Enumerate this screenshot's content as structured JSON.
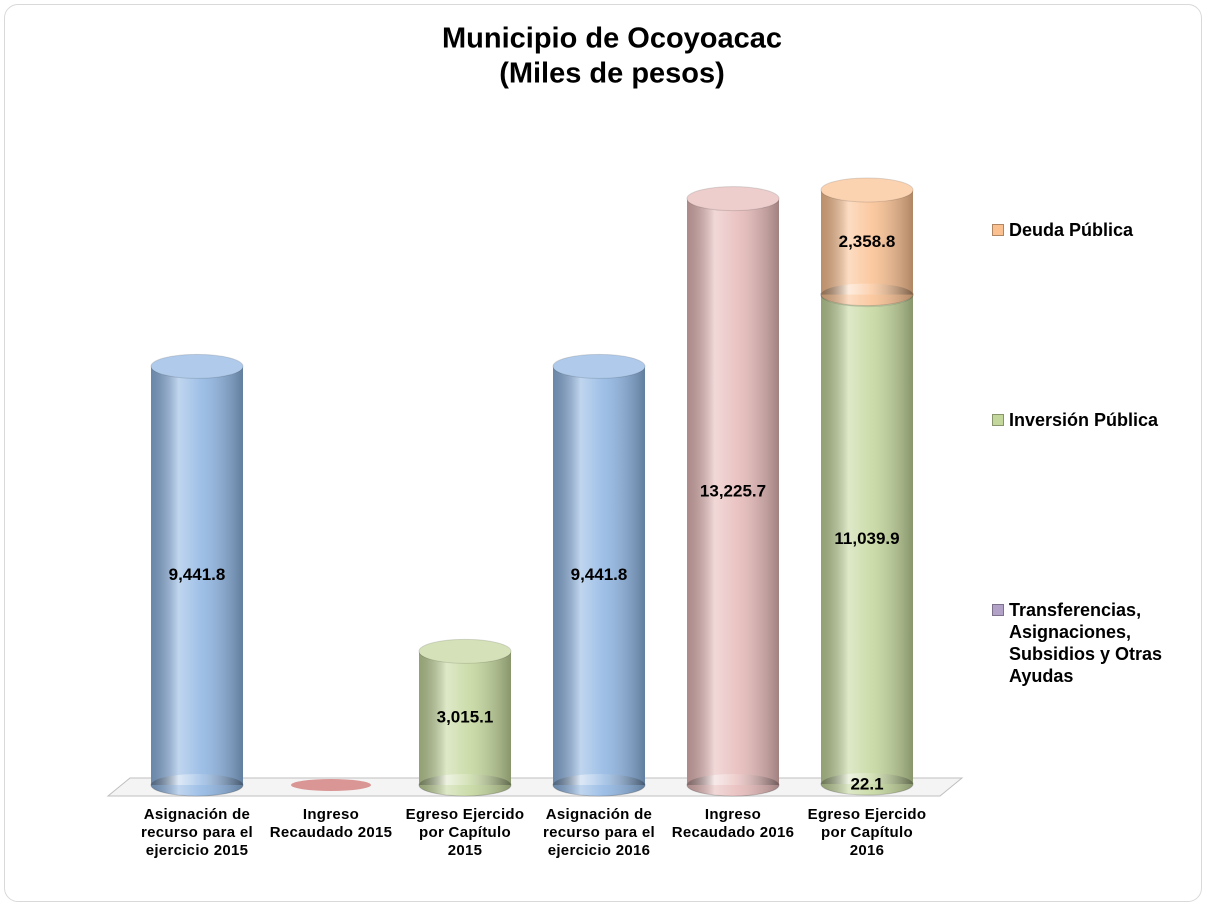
{
  "chart_data": {
    "type": "bar",
    "title": "Municipio de Ocoyoacac",
    "subtitle": "(Miles de pesos)",
    "categories": [
      "Asignación de recurso para el ejercicio 2015",
      "Ingreso Recaudado 2015",
      "Egreso Ejercido por Capítulo 2015",
      "Asignación de recurso para el ejercicio 2016",
      "Ingreso Recaudado 2016",
      "Egreso Ejercido por Capítulo 2016"
    ],
    "values": [
      9441.8,
      0,
      null,
      9441.8,
      13225.7,
      null
    ],
    "value_labels": [
      "9,441.8",
      null,
      null,
      "9,441.8",
      "13,225.7",
      null
    ],
    "colors": [
      "#8db4e2",
      "#d99694",
      null,
      "#8db4e2",
      "#e6b9b8",
      null
    ],
    "series": [
      {
        "name": "Transferencias, Asignaciones, Subsidios y Otras Ayudas",
        "color": "#b3a2c7",
        "values": [
          null,
          null,
          null,
          null,
          null,
          22.1
        ],
        "value_labels": [
          null,
          null,
          null,
          null,
          null,
          "22.1"
        ]
      },
      {
        "name": "Inversión Pública",
        "color": "#c3d69b",
        "values": [
          null,
          null,
          3015.1,
          null,
          null,
          11039.9
        ],
        "value_labels": [
          null,
          null,
          "3,015.1",
          null,
          null,
          "11,039.9"
        ]
      },
      {
        "name": "Deuda Pública",
        "color": "#fac090",
        "values": [
          null,
          null,
          null,
          null,
          null,
          2358.8
        ],
        "value_labels": [
          null,
          null,
          null,
          null,
          null,
          "2,358.8"
        ]
      }
    ],
    "legend": "right"
  }
}
